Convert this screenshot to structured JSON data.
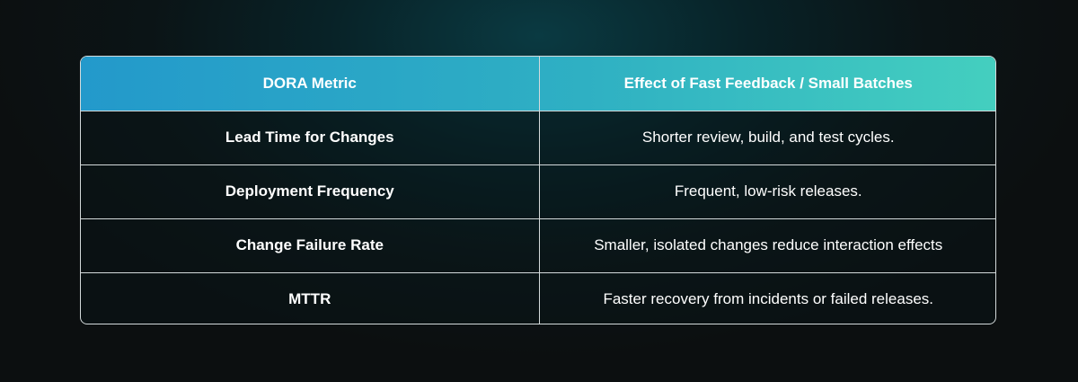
{
  "table": {
    "headers": [
      "DORA Metric",
      "Effect of Fast Feedback / Small Batches"
    ],
    "rows": [
      {
        "metric": "Lead Time for Changes",
        "effect": "Shorter review, build, and test cycles."
      },
      {
        "metric": "Deployment Frequency",
        "effect": "Frequent, low-risk releases."
      },
      {
        "metric": "Change Failure Rate",
        "effect": "Smaller, isolated changes reduce interaction effects"
      },
      {
        "metric": "MTTR",
        "effect": "Faster recovery from incidents or failed releases."
      }
    ]
  },
  "colors": {
    "header_gradient_start": "#2399cb",
    "header_gradient_end": "#44cfbf",
    "border": "#d4dadb",
    "text": "#ffffff"
  }
}
